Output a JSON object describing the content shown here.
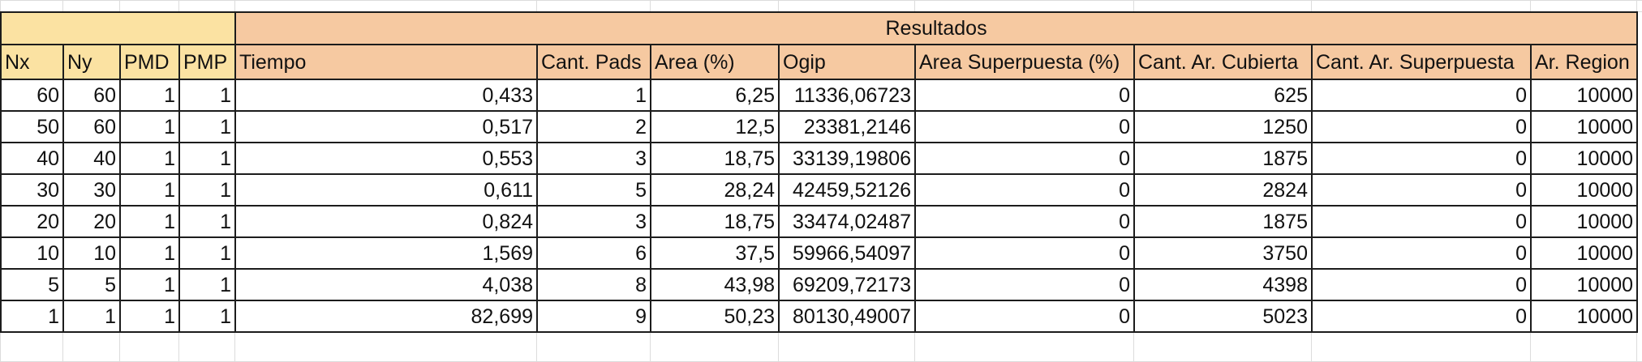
{
  "title_group": "Resultados",
  "columns": [
    "Nx",
    "Ny",
    "PMD",
    "PMP",
    "Tiempo",
    "Cant. Pads",
    "Area (%)",
    "Ogip",
    "Area Superpuesta (%)",
    "Cant. Ar. Cubierta",
    "Cant. Ar. Superpuesta",
    "Ar. Region"
  ],
  "rows": [
    [
      "60",
      "60",
      "1",
      "1",
      "0,433",
      "1",
      "6,25",
      "11336,06723",
      "0",
      "625",
      "0",
      "10000"
    ],
    [
      "50",
      "60",
      "1",
      "1",
      "0,517",
      "2",
      "12,5",
      "23381,2146",
      "0",
      "1250",
      "0",
      "10000"
    ],
    [
      "40",
      "40",
      "1",
      "1",
      "0,553",
      "3",
      "18,75",
      "33139,19806",
      "0",
      "1875",
      "0",
      "10000"
    ],
    [
      "30",
      "30",
      "1",
      "1",
      "0,611",
      "5",
      "28,24",
      "42459,52126",
      "0",
      "2824",
      "0",
      "10000"
    ],
    [
      "20",
      "20",
      "1",
      "1",
      "0,824",
      "3",
      "18,75",
      "33474,02487",
      "0",
      "1875",
      "0",
      "10000"
    ],
    [
      "10",
      "10",
      "1",
      "1",
      "1,569",
      "6",
      "37,5",
      "59966,54097",
      "0",
      "3750",
      "0",
      "10000"
    ],
    [
      "5",
      "5",
      "1",
      "1",
      "4,038",
      "8",
      "43,98",
      "69209,72173",
      "0",
      "4398",
      "0",
      "10000"
    ],
    [
      "1",
      "1",
      "1",
      "1",
      "82,699",
      "9",
      "50,23",
      "80130,49007",
      "0",
      "5023",
      "0",
      "10000"
    ]
  ],
  "colors": {
    "input_header": "#fbe2a2",
    "result_header": "#f6c9a1",
    "border": "#1c1c1c",
    "grid": "#dcdcdc"
  }
}
